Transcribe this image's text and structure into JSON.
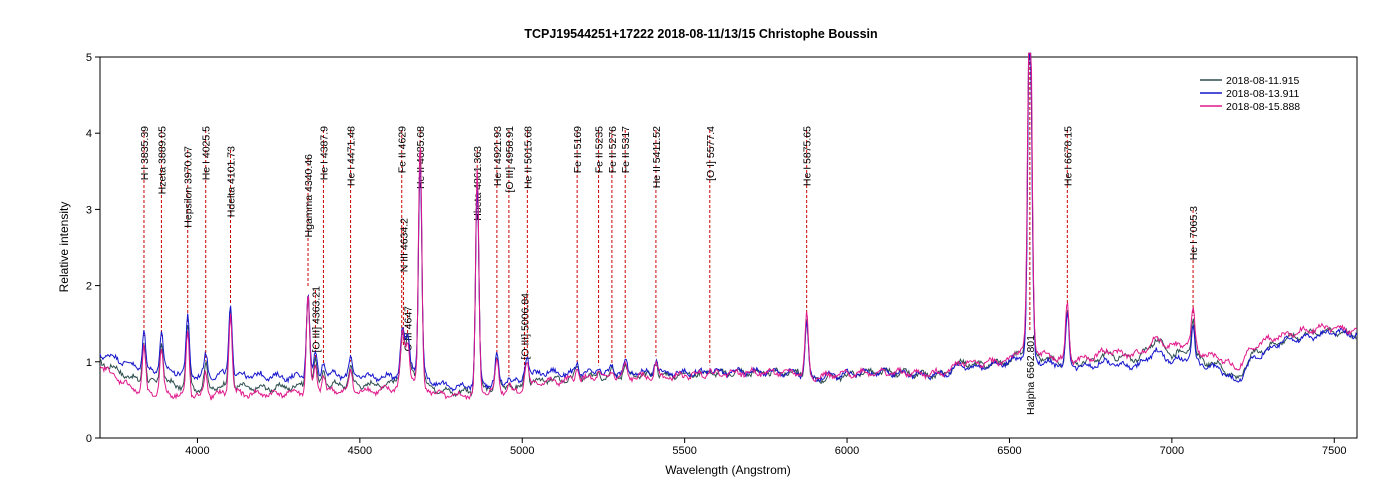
{
  "chart_data": {
    "type": "line",
    "title": "TCPJ19544251+17222  2018-08-11/13/15  Christophe Boussin",
    "xlabel": "Wavelength (Angstrom)",
    "ylabel": "Relative intensity",
    "xlim": [
      3700,
      7570
    ],
    "ylim": [
      0,
      5
    ],
    "xticks": [
      4000,
      4500,
      5000,
      5500,
      6000,
      6500,
      7000,
      7500
    ],
    "yticks": [
      0,
      1,
      2,
      3,
      4,
      5
    ],
    "grid": false,
    "legend_position": "top-right",
    "series": [
      {
        "name": "2018-08-11.915",
        "color": "#2f4f4f",
        "x": [
          3700,
          3750,
          3800,
          3850,
          3900,
          3950,
          4000,
          4050,
          4100,
          4150,
          4200,
          4250,
          4300,
          4350,
          4400,
          4450,
          4500,
          4550,
          4600,
          4650,
          4700,
          4750,
          4800,
          4850,
          4900,
          4950,
          5000,
          5050,
          5100,
          5150,
          5200,
          5250,
          5300,
          5350,
          5400,
          5450,
          5500,
          5550,
          5600,
          5650,
          5700,
          5750,
          5800,
          5850,
          5900,
          5950,
          6000,
          6050,
          6100,
          6150,
          6200,
          6250,
          6300,
          6350,
          6400,
          6450,
          6500,
          6550,
          6600,
          6650,
          6700,
          6750,
          6800,
          6850,
          6900,
          6950,
          7000,
          7050,
          7100,
          7150,
          7200,
          7250,
          7300,
          7350,
          7400,
          7450,
          7500,
          7570
        ],
        "y": [
          1.0,
          0.9,
          0.78,
          0.72,
          0.74,
          0.68,
          0.66,
          0.66,
          0.7,
          0.66,
          0.65,
          0.66,
          0.68,
          0.7,
          0.7,
          0.7,
          0.7,
          0.7,
          0.72,
          0.9,
          0.72,
          0.62,
          0.6,
          0.62,
          0.66,
          0.66,
          0.64,
          0.76,
          0.76,
          0.78,
          0.8,
          0.8,
          0.82,
          0.82,
          0.82,
          0.82,
          0.84,
          0.84,
          0.84,
          0.86,
          0.86,
          0.86,
          0.86,
          0.86,
          0.76,
          0.8,
          0.82,
          0.86,
          0.86,
          0.86,
          0.84,
          0.82,
          0.84,
          1.0,
          0.95,
          0.98,
          1.0,
          1.2,
          1.05,
          1.0,
          0.98,
          1.0,
          1.1,
          1.05,
          1.05,
          1.3,
          1.1,
          1.15,
          1.0,
          0.95,
          0.75,
          1.1,
          1.2,
          1.3,
          1.35,
          1.4,
          1.4,
          1.35
        ]
      },
      {
        "name": "2018-08-13.911",
        "color": "#1515cc",
        "x": [
          3700,
          3750,
          3800,
          3850,
          3900,
          3950,
          4000,
          4050,
          4100,
          4150,
          4200,
          4250,
          4300,
          4350,
          4400,
          4450,
          4500,
          4550,
          4600,
          4650,
          4700,
          4750,
          4800,
          4850,
          4900,
          4950,
          5000,
          5050,
          5100,
          5150,
          5200,
          5250,
          5300,
          5350,
          5400,
          5450,
          5500,
          5550,
          5600,
          5650,
          5700,
          5750,
          5800,
          5850,
          5900,
          5950,
          6000,
          6050,
          6100,
          6150,
          6200,
          6250,
          6300,
          6350,
          6400,
          6450,
          6500,
          6550,
          6600,
          6650,
          6700,
          6750,
          6800,
          6850,
          6900,
          6950,
          7000,
          7050,
          7100,
          7150,
          7200,
          7250,
          7300,
          7350,
          7400,
          7450,
          7500,
          7570
        ],
        "y": [
          1.1,
          1.05,
          0.95,
          0.88,
          0.9,
          0.86,
          0.82,
          0.82,
          0.85,
          0.82,
          0.82,
          0.8,
          0.8,
          0.82,
          0.84,
          0.82,
          0.82,
          0.8,
          0.8,
          1.0,
          0.8,
          0.7,
          0.66,
          0.7,
          0.72,
          0.72,
          0.74,
          0.86,
          0.86,
          0.84,
          0.85,
          0.84,
          0.86,
          0.86,
          0.86,
          0.85,
          0.86,
          0.86,
          0.86,
          0.87,
          0.87,
          0.87,
          0.86,
          0.85,
          0.78,
          0.82,
          0.84,
          0.86,
          0.86,
          0.86,
          0.84,
          0.82,
          0.84,
          0.96,
          0.92,
          0.96,
          1.0,
          1.1,
          1.0,
          0.97,
          0.95,
          0.95,
          1.0,
          0.95,
          0.95,
          1.15,
          1.0,
          1.05,
          0.95,
          0.9,
          0.72,
          1.05,
          1.15,
          1.3,
          1.3,
          1.35,
          1.4,
          1.35
        ]
      },
      {
        "name": "2018-08-15.888",
        "color": "#e0198c",
        "x": [
          3700,
          3750,
          3800,
          3850,
          3900,
          3950,
          4000,
          4050,
          4100,
          4150,
          4200,
          4250,
          4300,
          4350,
          4400,
          4450,
          4500,
          4550,
          4600,
          4650,
          4700,
          4750,
          4800,
          4850,
          4900,
          4950,
          5000,
          5050,
          5100,
          5150,
          5200,
          5250,
          5300,
          5350,
          5400,
          5450,
          5500,
          5550,
          5600,
          5650,
          5700,
          5750,
          5800,
          5850,
          5900,
          5950,
          6000,
          6050,
          6100,
          6150,
          6200,
          6250,
          6300,
          6350,
          6400,
          6450,
          6500,
          6550,
          6600,
          6650,
          6700,
          6750,
          6800,
          6850,
          6900,
          6950,
          7000,
          7050,
          7100,
          7150,
          7200,
          7250,
          7300,
          7350,
          7400,
          7450,
          7500,
          7570
        ],
        "y": [
          0.95,
          0.8,
          0.65,
          0.58,
          0.6,
          0.56,
          0.55,
          0.56,
          0.6,
          0.58,
          0.58,
          0.58,
          0.6,
          0.62,
          0.62,
          0.62,
          0.62,
          0.62,
          0.64,
          0.85,
          0.66,
          0.56,
          0.55,
          0.57,
          0.62,
          0.62,
          0.6,
          0.74,
          0.74,
          0.76,
          0.78,
          0.78,
          0.8,
          0.8,
          0.8,
          0.8,
          0.82,
          0.84,
          0.84,
          0.86,
          0.86,
          0.86,
          0.86,
          0.86,
          0.8,
          0.82,
          0.84,
          0.86,
          0.86,
          0.86,
          0.85,
          0.84,
          0.86,
          1.0,
          0.98,
          1.0,
          1.02,
          1.25,
          1.1,
          1.05,
          1.02,
          1.05,
          1.15,
          1.1,
          1.1,
          1.3,
          1.2,
          1.25,
          1.1,
          1.05,
          0.9,
          1.2,
          1.3,
          1.35,
          1.4,
          1.45,
          1.45,
          1.4
        ]
      }
    ],
    "emission_lines": [
      {
        "label": "H I 3835.39",
        "wavelength": 3835.39,
        "amplitude": 0.55
      },
      {
        "label": "Hzeta 3889.05",
        "wavelength": 3889.05,
        "amplitude": 0.55
      },
      {
        "label": "Hepsilon 3970.07",
        "wavelength": 3970.07,
        "amplitude": 0.8
      },
      {
        "label": "He I 4025.5",
        "wavelength": 4025.5,
        "amplitude": 0.3
      },
      {
        "label": "Hdelta 4101.73",
        "wavelength": 4101.73,
        "amplitude": 1.0
      },
      {
        "label": "Hgamma 4340.46",
        "wavelength": 4340.46,
        "amplitude": 1.22
      },
      {
        "label": "[O III] 4363.21",
        "wavelength": 4363.21,
        "amplitude": 0.3
      },
      {
        "label": "He I 4387.9",
        "wavelength": 4387.9,
        "amplitude": 0.2
      },
      {
        "label": "He I 4471.48",
        "wavelength": 4471.48,
        "amplitude": 0.25
      },
      {
        "label": "Fe II 4629",
        "wavelength": 4629,
        "amplitude": 0.35
      },
      {
        "label": "N III 4634.2",
        "wavelength": 4634.2,
        "amplitude": 0.3
      },
      {
        "label": "C III 4647",
        "wavelength": 4647,
        "amplitude": 0.4
      },
      {
        "label": "He II 4685.68",
        "wavelength": 4685.68,
        "amplitude": 3.0
      },
      {
        "label": "Hbeta 4861.363",
        "wavelength": 4861.363,
        "amplitude": 2.8
      },
      {
        "label": "He I 4921.93",
        "wavelength": 4921.93,
        "amplitude": 0.4
      },
      {
        "label": "[O III] 4958.91",
        "wavelength": 4958.91,
        "amplitude": 0.1
      },
      {
        "label": "[O III] 5006.84",
        "wavelength": 5006.84,
        "amplitude": 0.15
      },
      {
        "label": "He II 5015.68",
        "wavelength": 5015.68,
        "amplitude": 0.3
      },
      {
        "label": "Fe II 5169",
        "wavelength": 5169,
        "amplitude": 0.15
      },
      {
        "label": "Fe II 5235",
        "wavelength": 5235,
        "amplitude": 0.1
      },
      {
        "label": "Fe II 5276",
        "wavelength": 5276,
        "amplitude": 0.1
      },
      {
        "label": "Fe II 5317",
        "wavelength": 5317,
        "amplitude": 0.15
      },
      {
        "label": "He II 5411.52",
        "wavelength": 5411.52,
        "amplitude": 0.2
      },
      {
        "label": "[O I] 5577.4",
        "wavelength": 5577.4,
        "amplitude": 0.06
      },
      {
        "label": "He I 5875.65",
        "wavelength": 5875.65,
        "amplitude": 0.75
      },
      {
        "label": "Halpha 6562.801",
        "wavelength": 6562.801,
        "amplitude": 5.0
      },
      {
        "label": "He I 6678.15",
        "wavelength": 6678.15,
        "amplitude": 0.7
      },
      {
        "label": "He I 7065.3",
        "wavelength": 7065.3,
        "amplitude": 0.45
      }
    ]
  }
}
